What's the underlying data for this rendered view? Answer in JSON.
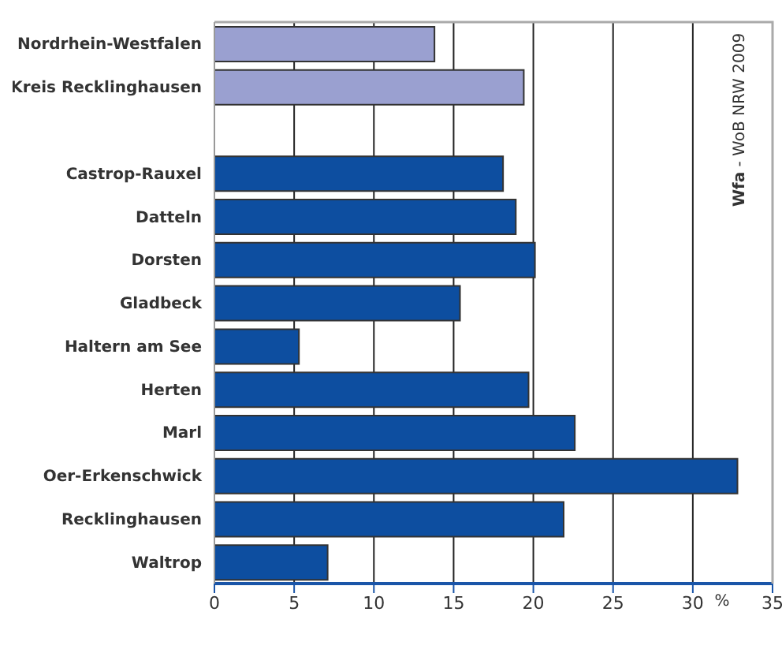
{
  "chart_data": {
    "type": "bar",
    "orientation": "horizontal",
    "categories": [
      "Nordrhein-Westfalen",
      "Kreis Recklinghausen",
      null,
      "Castrop-Rauxel",
      "Datteln",
      "Dorsten",
      "Gladbeck",
      "Haltern am See",
      "Herten",
      "Marl",
      "Oer-Erkenschwick",
      "Recklinghausen",
      "Waltrop"
    ],
    "values": [
      13.8,
      19.4,
      null,
      18.1,
      18.9,
      20.1,
      15.4,
      5.3,
      19.7,
      22.6,
      32.8,
      21.9,
      7.1
    ],
    "colors": [
      "#9aa0d0",
      "#9aa0d0",
      "#0d4ea0",
      "#0d4ea0",
      "#0d4ea0",
      "#0d4ea0",
      "#0d4ea0",
      "#0d4ea0",
      "#0d4ea0",
      "#0d4ea0",
      "#0d4ea0",
      "#0d4ea0",
      "#0d4ea0"
    ],
    "xlim": [
      0,
      35
    ],
    "xticks": [
      0,
      5,
      10,
      15,
      20,
      25,
      30,
      35
    ],
    "xlabel": "%",
    "grid": "x",
    "annotations": [
      "Wfa - WoB NRW 2009"
    ]
  }
}
